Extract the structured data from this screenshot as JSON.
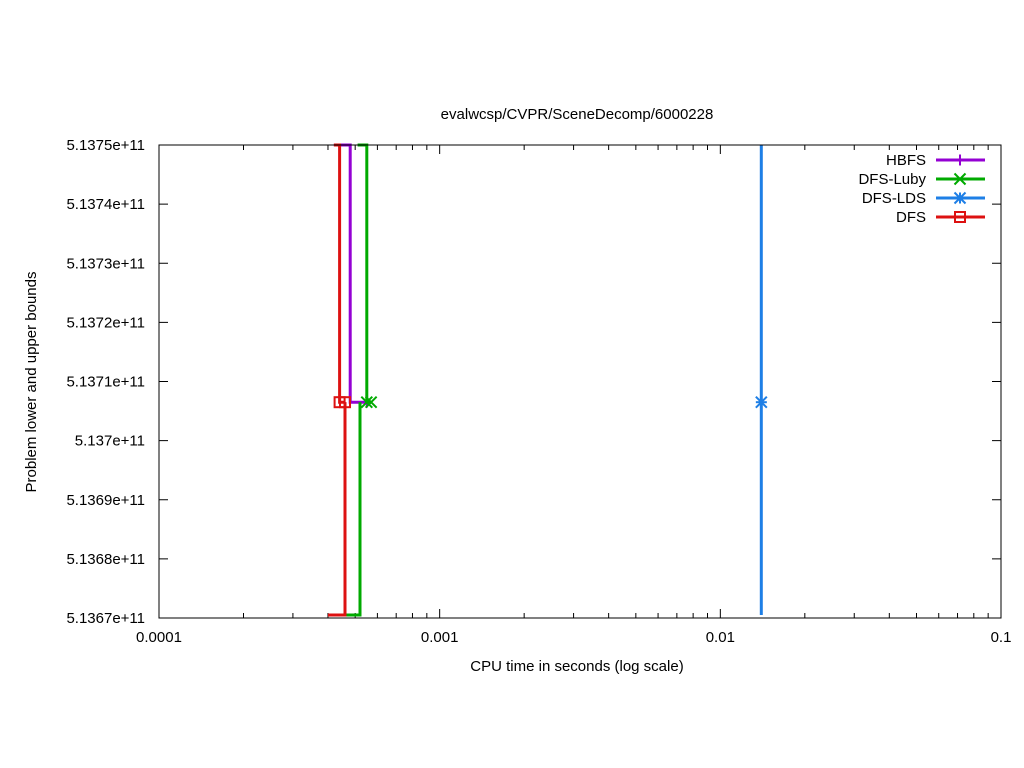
{
  "chart_data": {
    "type": "line",
    "title": "evalwcsp/CVPR/SceneDecomp/6000228",
    "xlabel": "CPU time in seconds (log scale)",
    "ylabel": "Problem lower and upper bounds",
    "x_scale": "log",
    "xlim": [
      0.0001,
      0.1
    ],
    "ylim": [
      513670000000,
      513750000000
    ],
    "x_ticks": [
      {
        "value": 0.0001,
        "label": "0.0001"
      },
      {
        "value": 0.001,
        "label": "0.001"
      },
      {
        "value": 0.01,
        "label": "0.01"
      },
      {
        "value": 0.1,
        "label": "0.1"
      }
    ],
    "y_ticks": [
      {
        "value": 513670000000,
        "label": "5.1367e+11"
      },
      {
        "value": 513680000000,
        "label": "5.1368e+11"
      },
      {
        "value": 513690000000,
        "label": "5.1369e+11"
      },
      {
        "value": 513700000000,
        "label": "5.137e+11"
      },
      {
        "value": 513710000000,
        "label": "5.1371e+11"
      },
      {
        "value": 513720000000,
        "label": "5.1372e+11"
      },
      {
        "value": 513730000000,
        "label": "5.1373e+11"
      },
      {
        "value": 513740000000,
        "label": "5.1374e+11"
      },
      {
        "value": 513750000000,
        "label": "5.1375e+11"
      }
    ],
    "grid": false,
    "legend_position": "top-right",
    "series": [
      {
        "name": "HBFS",
        "color": "#9400d3",
        "marker": "plus",
        "upper": [
          [
            0.00042,
            513750000000
          ],
          [
            0.00048,
            513750000000
          ],
          [
            0.00048,
            513706500000
          ],
          [
            0.00055,
            513706500000
          ]
        ],
        "lower": [
          [
            0.00046,
            513670500000
          ],
          [
            0.00046,
            513706500000
          ]
        ],
        "marker_points": [
          [
            0.00055,
            513706500000
          ]
        ]
      },
      {
        "name": "DFS-Luby",
        "color": "#00aa00",
        "marker": "x",
        "upper": [
          [
            0.00051,
            513750000000
          ],
          [
            0.00055,
            513750000000
          ],
          [
            0.00055,
            513706500000
          ],
          [
            0.00057,
            513706500000
          ]
        ],
        "lower": [
          [
            0.00046,
            513670500000
          ],
          [
            0.00052,
            513670500000
          ],
          [
            0.00052,
            513706500000
          ]
        ],
        "marker_points": [
          [
            0.00055,
            513706500000
          ],
          [
            0.00057,
            513706500000
          ]
        ]
      },
      {
        "name": "DFS-LDS",
        "color": "#1e7fe6",
        "marker": "star",
        "upper": [
          [
            0.014,
            513750000000
          ],
          [
            0.014,
            513706500000
          ]
        ],
        "lower": [
          [
            0.014,
            513670500000
          ],
          [
            0.014,
            513706500000
          ]
        ],
        "marker_points": [
          [
            0.014,
            513706500000
          ]
        ]
      },
      {
        "name": "DFS",
        "color": "#dd1111",
        "marker": "square",
        "upper": [
          [
            0.00042,
            513750000000
          ],
          [
            0.00044,
            513750000000
          ],
          [
            0.00044,
            513706500000
          ],
          [
            0.00046,
            513706500000
          ]
        ],
        "lower": [
          [
            0.0004,
            513670500000
          ],
          [
            0.00046,
            513670500000
          ],
          [
            0.00046,
            513706500000
          ]
        ],
        "marker_points": [
          [
            0.00044,
            513706500000
          ],
          [
            0.00046,
            513706500000
          ]
        ]
      }
    ]
  }
}
